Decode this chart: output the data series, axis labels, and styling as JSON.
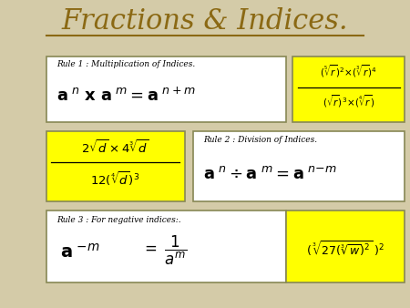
{
  "title": "Fractions & Indices.",
  "title_color": "#8B6914",
  "title_fontsize": 22,
  "bg_color": "#D4CBA8",
  "yellow_bg": "#FFFF00",
  "box_edge_color": "#888855",
  "rule1_label": "Rule 1 : Multiplication of Indices.",
  "rule2_label": "Rule 2 : Division of Indices.",
  "rule3_label": "Rule 3 : For negative indices:."
}
